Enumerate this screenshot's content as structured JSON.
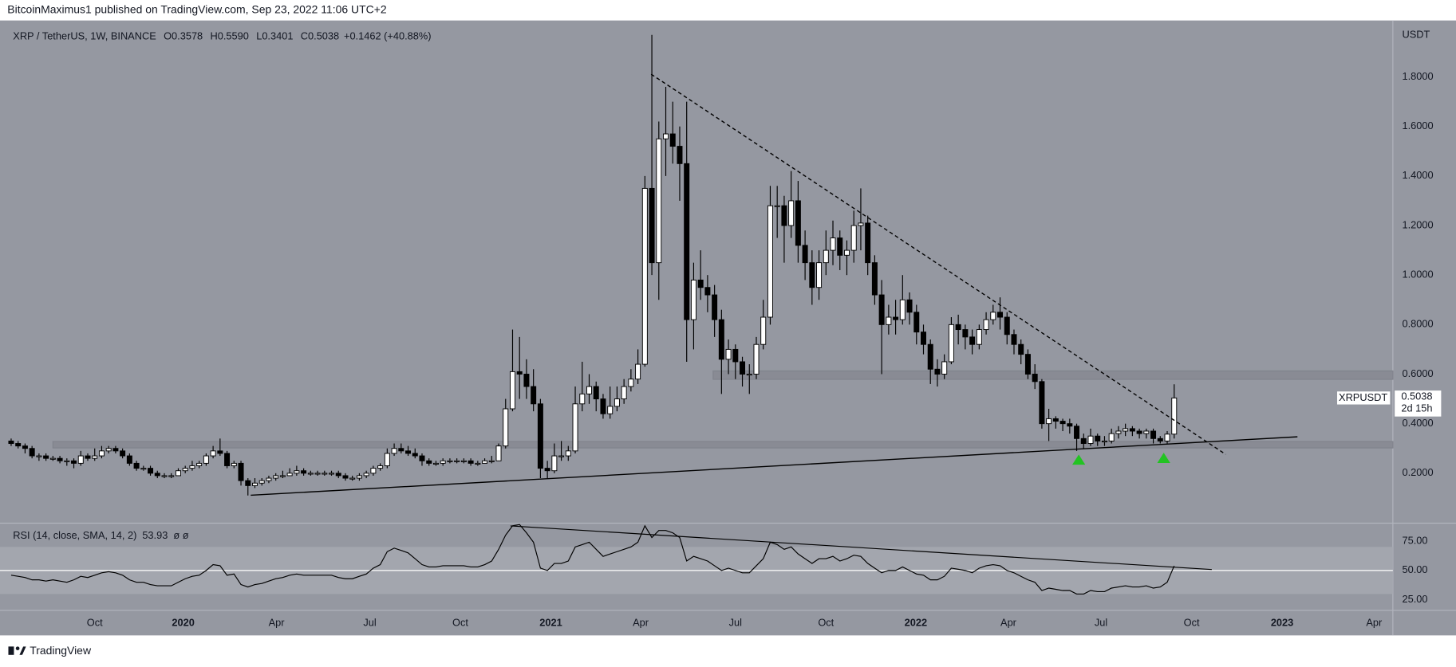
{
  "header": {
    "published": "BitcoinMaximus1 published on TradingView.com, Sep 23, 2022 11:06 UTC+2",
    "footer": "TradingView"
  },
  "chart_data": {
    "type": "candlestick",
    "legend": {
      "symbol": "XRP / TetherUS, 1W, BINANCE",
      "fields": [
        {
          "name": "O",
          "value": "0.3578"
        },
        {
          "name": "H",
          "value": "0.5590"
        },
        {
          "name": "L",
          "value": "0.3401"
        },
        {
          "name": "C",
          "value": "0.5038"
        }
      ],
      "change": "+0.1462 (+40.88%)"
    },
    "unit": "USDT",
    "price_tag": {
      "symbol": "XRPUSDT",
      "price": "0.5038",
      "countdown": "2d 15h"
    },
    "up_color": "#ffffff",
    "down_color": "#000000",
    "open": [
      0.33,
      0.32,
      0.31,
      0.3,
      0.27,
      0.27,
      0.26,
      0.26,
      0.25,
      0.25,
      0.24,
      0.27,
      0.26,
      0.27,
      0.29,
      0.3,
      0.29,
      0.27,
      0.24,
      0.22,
      0.22,
      0.2,
      0.19,
      0.19,
      0.19,
      0.21,
      0.22,
      0.23,
      0.24,
      0.27,
      0.29,
      0.28,
      0.23,
      0.24,
      0.17,
      0.15,
      0.16,
      0.17,
      0.18,
      0.19,
      0.19,
      0.2,
      0.21,
      0.2,
      0.2,
      0.2,
      0.2,
      0.2,
      0.19,
      0.18,
      0.18,
      0.19,
      0.2,
      0.22,
      0.23,
      0.28,
      0.3,
      0.29,
      0.28,
      0.27,
      0.25,
      0.24,
      0.24,
      0.25,
      0.25,
      0.25,
      0.25,
      0.24,
      0.24,
      0.25,
      0.25,
      0.31,
      0.46,
      0.61,
      0.6,
      0.55,
      0.48,
      0.22,
      0.21,
      0.27,
      0.27,
      0.29,
      0.48,
      0.52,
      0.55,
      0.5,
      0.44,
      0.47,
      0.5,
      0.55,
      0.58,
      0.64,
      1.35,
      1.05,
      1.55,
      1.57,
      1.52,
      1.45,
      0.82,
      0.98,
      0.95,
      0.92,
      0.82,
      0.66,
      0.7,
      0.65,
      0.6,
      0.6,
      0.72,
      0.83,
      1.28,
      1.28,
      1.2,
      1.3,
      1.12,
      1.05,
      0.95,
      1.05,
      1.1,
      1.15,
      1.08,
      1.1,
      1.2,
      1.21,
      1.05,
      0.92,
      0.8,
      0.83,
      0.82,
      0.9,
      0.85,
      0.77,
      0.72,
      0.62,
      0.6,
      0.65,
      0.8,
      0.78,
      0.75,
      0.72,
      0.78,
      0.82,
      0.85,
      0.83,
      0.76,
      0.72,
      0.68,
      0.6,
      0.57,
      0.4,
      0.42,
      0.41,
      0.4,
      0.39,
      0.34,
      0.32,
      0.35,
      0.33,
      0.33,
      0.36,
      0.37,
      0.38,
      0.37,
      0.36,
      0.37,
      0.34,
      0.33,
      0.3578
    ],
    "high": [
      0.34,
      0.33,
      0.32,
      0.31,
      0.28,
      0.28,
      0.27,
      0.27,
      0.26,
      0.26,
      0.29,
      0.28,
      0.3,
      0.31,
      0.31,
      0.31,
      0.3,
      0.28,
      0.25,
      0.23,
      0.23,
      0.21,
      0.2,
      0.2,
      0.22,
      0.23,
      0.25,
      0.25,
      0.28,
      0.31,
      0.34,
      0.29,
      0.25,
      0.25,
      0.18,
      0.18,
      0.18,
      0.19,
      0.2,
      0.21,
      0.22,
      0.23,
      0.22,
      0.21,
      0.21,
      0.21,
      0.21,
      0.21,
      0.2,
      0.19,
      0.2,
      0.21,
      0.23,
      0.24,
      0.3,
      0.32,
      0.32,
      0.31,
      0.3,
      0.28,
      0.26,
      0.25,
      0.26,
      0.26,
      0.26,
      0.26,
      0.26,
      0.25,
      0.26,
      0.27,
      0.32,
      0.5,
      0.78,
      0.75,
      0.66,
      0.62,
      0.5,
      0.25,
      0.32,
      0.33,
      0.31,
      0.55,
      0.65,
      0.6,
      0.57,
      0.52,
      0.55,
      0.55,
      0.58,
      0.62,
      0.7,
      1.4,
      1.97,
      1.62,
      1.76,
      1.7,
      1.6,
      1.7,
      1.05,
      1.1,
      1.0,
      0.96,
      0.86,
      0.74,
      0.72,
      0.67,
      0.64,
      0.75,
      0.9,
      1.36,
      1.36,
      1.32,
      1.42,
      1.38,
      1.18,
      1.1,
      1.1,
      1.18,
      1.22,
      1.18,
      1.14,
      1.26,
      1.35,
      1.24,
      1.08,
      0.98,
      0.88,
      0.9,
      1.0,
      0.93,
      0.88,
      0.8,
      0.74,
      0.66,
      0.68,
      0.83,
      0.84,
      0.8,
      0.78,
      0.8,
      0.85,
      0.88,
      0.91,
      0.85,
      0.78,
      0.74,
      0.7,
      0.64,
      0.58,
      0.46,
      0.43,
      0.42,
      0.42,
      0.4,
      0.36,
      0.38,
      0.36,
      0.35,
      0.38,
      0.39,
      0.4,
      0.39,
      0.38,
      0.38,
      0.38,
      0.35,
      0.37,
      0.559
    ],
    "low": [
      0.31,
      0.3,
      0.28,
      0.26,
      0.25,
      0.25,
      0.25,
      0.24,
      0.23,
      0.22,
      0.23,
      0.25,
      0.25,
      0.26,
      0.28,
      0.28,
      0.26,
      0.23,
      0.21,
      0.21,
      0.19,
      0.18,
      0.18,
      0.18,
      0.19,
      0.2,
      0.21,
      0.22,
      0.23,
      0.26,
      0.27,
      0.22,
      0.22,
      0.15,
      0.11,
      0.14,
      0.15,
      0.16,
      0.17,
      0.18,
      0.19,
      0.19,
      0.19,
      0.19,
      0.19,
      0.19,
      0.19,
      0.18,
      0.17,
      0.17,
      0.17,
      0.18,
      0.19,
      0.21,
      0.22,
      0.27,
      0.28,
      0.27,
      0.26,
      0.23,
      0.23,
      0.23,
      0.23,
      0.24,
      0.24,
      0.24,
      0.23,
      0.23,
      0.24,
      0.24,
      0.25,
      0.3,
      0.45,
      0.5,
      0.5,
      0.45,
      0.18,
      0.18,
      0.2,
      0.25,
      0.25,
      0.28,
      0.45,
      0.48,
      0.45,
      0.42,
      0.42,
      0.45,
      0.48,
      0.53,
      0.56,
      0.63,
      1.0,
      0.9,
      1.4,
      1.45,
      1.3,
      0.65,
      0.7,
      0.9,
      0.85,
      0.75,
      0.52,
      0.6,
      0.58,
      0.55,
      0.52,
      0.58,
      0.7,
      0.8,
      1.15,
      1.05,
      1.15,
      1.05,
      0.98,
      0.88,
      0.9,
      1.0,
      1.04,
      1.02,
      1.0,
      1.05,
      1.1,
      1.0,
      0.88,
      0.6,
      0.76,
      0.76,
      0.8,
      0.8,
      0.72,
      0.68,
      0.56,
      0.55,
      0.58,
      0.64,
      0.72,
      0.7,
      0.68,
      0.7,
      0.76,
      0.8,
      0.78,
      0.72,
      0.68,
      0.64,
      0.58,
      0.54,
      0.38,
      0.33,
      0.38,
      0.37,
      0.36,
      0.29,
      0.3,
      0.31,
      0.31,
      0.31,
      0.32,
      0.34,
      0.35,
      0.35,
      0.34,
      0.34,
      0.32,
      0.32,
      0.32,
      0.3401
    ],
    "close": [
      0.32,
      0.31,
      0.3,
      0.27,
      0.27,
      0.26,
      0.26,
      0.25,
      0.25,
      0.24,
      0.27,
      0.26,
      0.27,
      0.29,
      0.3,
      0.29,
      0.27,
      0.24,
      0.22,
      0.22,
      0.2,
      0.19,
      0.19,
      0.19,
      0.21,
      0.22,
      0.23,
      0.24,
      0.27,
      0.29,
      0.28,
      0.23,
      0.24,
      0.17,
      0.15,
      0.16,
      0.17,
      0.18,
      0.19,
      0.19,
      0.2,
      0.21,
      0.2,
      0.2,
      0.2,
      0.2,
      0.2,
      0.19,
      0.18,
      0.18,
      0.19,
      0.2,
      0.22,
      0.23,
      0.28,
      0.3,
      0.29,
      0.28,
      0.27,
      0.25,
      0.24,
      0.24,
      0.25,
      0.25,
      0.25,
      0.25,
      0.24,
      0.24,
      0.25,
      0.25,
      0.31,
      0.46,
      0.61,
      0.6,
      0.55,
      0.48,
      0.22,
      0.21,
      0.27,
      0.27,
      0.29,
      0.48,
      0.52,
      0.55,
      0.5,
      0.44,
      0.47,
      0.5,
      0.55,
      0.58,
      0.64,
      1.35,
      1.05,
      1.55,
      1.57,
      1.52,
      1.45,
      0.82,
      0.98,
      0.95,
      0.92,
      0.82,
      0.66,
      0.7,
      0.65,
      0.6,
      0.6,
      0.72,
      0.83,
      1.28,
      1.28,
      1.2,
      1.3,
      1.12,
      1.05,
      0.95,
      1.05,
      1.1,
      1.15,
      1.08,
      1.1,
      1.2,
      1.21,
      1.05,
      0.92,
      0.8,
      0.83,
      0.82,
      0.9,
      0.85,
      0.77,
      0.72,
      0.62,
      0.6,
      0.65,
      0.8,
      0.78,
      0.75,
      0.72,
      0.78,
      0.82,
      0.85,
      0.83,
      0.76,
      0.72,
      0.68,
      0.6,
      0.57,
      0.4,
      0.42,
      0.41,
      0.4,
      0.39,
      0.34,
      0.32,
      0.35,
      0.33,
      0.33,
      0.36,
      0.37,
      0.38,
      0.37,
      0.36,
      0.37,
      0.34,
      0.33,
      0.3578,
      0.5038
    ],
    "xlim": [
      -1.6,
      198.4
    ],
    "xticks": [
      {
        "value": 12,
        "label": "Oct"
      },
      {
        "value": 24.7,
        "label": "2020"
      },
      {
        "value": 38.1,
        "label": "Apr"
      },
      {
        "value": 51.5,
        "label": "Jul"
      },
      {
        "value": 64.5,
        "label": "Oct"
      },
      {
        "value": 77.5,
        "label": "2021"
      },
      {
        "value": 90.4,
        "label": "Apr"
      },
      {
        "value": 104,
        "label": "Jul"
      },
      {
        "value": 117,
        "label": "Oct"
      },
      {
        "value": 129.9,
        "label": "2022"
      },
      {
        "value": 143.2,
        "label": "Apr"
      },
      {
        "value": 156.5,
        "label": "Jul"
      },
      {
        "value": 169.5,
        "label": "Oct"
      },
      {
        "value": 182.5,
        "label": "2023"
      },
      {
        "value": 195.7,
        "label": "Apr"
      }
    ],
    "ylim": [
      0.002,
      2.028
    ],
    "yticks": [
      {
        "value": 0.2,
        "label": "0.2000"
      },
      {
        "value": 0.4,
        "label": "0.4000"
      },
      {
        "value": 0.6,
        "label": "0.6000"
      },
      {
        "value": 0.8,
        "label": "0.8000"
      },
      {
        "value": 1,
        "label": "1.0000"
      },
      {
        "value": 1.2,
        "label": "1.2000"
      },
      {
        "value": 1.4,
        "label": "1.4000"
      },
      {
        "value": 1.6,
        "label": "1.6000"
      },
      {
        "value": 1.8,
        "label": "1.8000"
      }
    ],
    "drawings": {
      "trendlines": [
        {
          "x": [
            91.9,
            174.4
          ],
          "y": [
            1.811,
            0.276
          ],
          "style": "dashed"
        },
        {
          "x": [
            34.4,
            184.7
          ],
          "y": [
            0.111,
            0.347
          ],
          "style": "solid"
        }
      ],
      "zones": [
        {
          "x": [
            100.8,
            198.4
          ],
          "y": [
            0.579,
            0.613
          ]
        },
        {
          "x": [
            6,
            198.4
          ],
          "y": [
            0.302,
            0.328
          ]
        }
      ],
      "markers": [
        {
          "x": 153.3,
          "y": 0.253
        },
        {
          "x": 165.5,
          "y": 0.26
        }
      ],
      "marker_color": "#22c322"
    },
    "rsi": {
      "title": "RSI (14, close, SMA, 14, 2)",
      "last": "53.93",
      "extra": "ø ø",
      "color": "#000000",
      "values": [
        46,
        45,
        44,
        42,
        42,
        41,
        42,
        41,
        40,
        42,
        45,
        44,
        46,
        48,
        49,
        48,
        46,
        42,
        40,
        40,
        38,
        37,
        37,
        37,
        40,
        43,
        45,
        46,
        50,
        55,
        54,
        46,
        47,
        38,
        36,
        38,
        39,
        41,
        43,
        44,
        46,
        47,
        46,
        46,
        46,
        46,
        46,
        44,
        43,
        43,
        45,
        47,
        52,
        55,
        66,
        69,
        67,
        65,
        60,
        55,
        53,
        53,
        54,
        54,
        54,
        54,
        53,
        53,
        55,
        58,
        68,
        80,
        88,
        89,
        82,
        74,
        52,
        50,
        56,
        56,
        58,
        70,
        72,
        74,
        68,
        62,
        64,
        66,
        68,
        70,
        74,
        88,
        78,
        84,
        84,
        82,
        78,
        58,
        62,
        60,
        58,
        54,
        50,
        52,
        50,
        48,
        48,
        54,
        60,
        74,
        72,
        68,
        70,
        64,
        60,
        56,
        60,
        60,
        62,
        58,
        60,
        63,
        62,
        56,
        52,
        48,
        50,
        50,
        53,
        50,
        47,
        46,
        42,
        42,
        45,
        52,
        51,
        50,
        48,
        52,
        54,
        55,
        54,
        50,
        48,
        45,
        42,
        40,
        33,
        35,
        34,
        33,
        33,
        30,
        30,
        33,
        32,
        32,
        35,
        36,
        37,
        36,
        36,
        37,
        35,
        36,
        40,
        53.93
      ],
      "ylim": [
        16.9,
        89.4
      ],
      "yticks": [
        {
          "value": 25,
          "label": "25.00"
        },
        {
          "value": 50,
          "label": "50.00"
        },
        {
          "value": 75,
          "label": "75.00"
        }
      ],
      "bands": [
        30,
        70
      ],
      "midline": 50,
      "trendline": {
        "x": [
          71.7,
          172.4
        ],
        "y": [
          87.9,
          50.8
        ]
      }
    }
  }
}
